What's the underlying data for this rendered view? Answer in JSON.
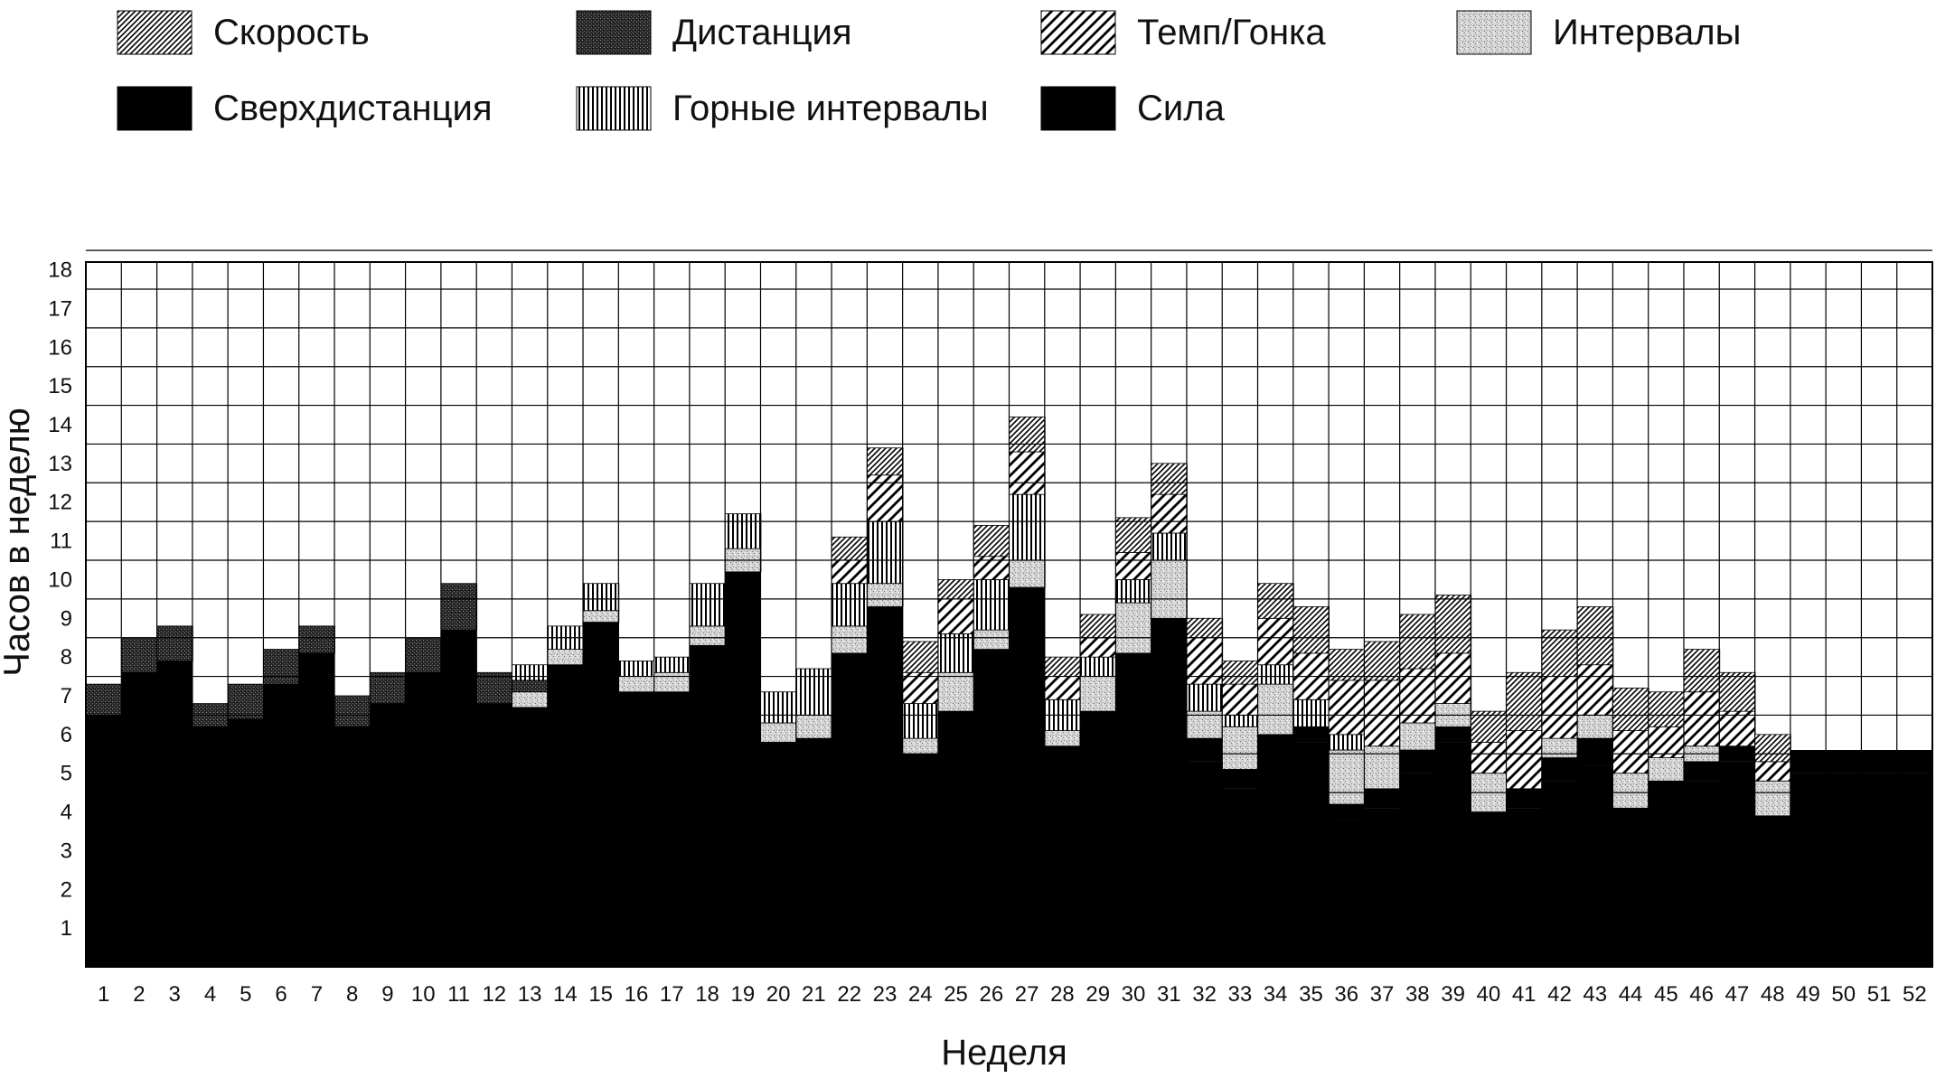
{
  "chart_data": {
    "type": "bar",
    "stacked": true,
    "title": "",
    "xlabel": "Неделя",
    "ylabel": "Часов в неделю",
    "ylim": [
      0,
      18
    ],
    "yticks": [
      1,
      2,
      3,
      4,
      5,
      6,
      7,
      8,
      9,
      10,
      11,
      12,
      13,
      14,
      15,
      16,
      17,
      18
    ],
    "grid": true,
    "legend_position": "top",
    "categories": [
      "1",
      "2",
      "3",
      "4",
      "5",
      "6",
      "7",
      "8",
      "9",
      "10",
      "11",
      "12",
      "13",
      "14",
      "15",
      "16",
      "17",
      "18",
      "19",
      "20",
      "21",
      "22",
      "23",
      "24",
      "25",
      "26",
      "27",
      "28",
      "29",
      "30",
      "31",
      "32",
      "33",
      "34",
      "35",
      "36",
      "37",
      "38",
      "39",
      "40",
      "41",
      "42",
      "43",
      "44",
      "45",
      "46",
      "47",
      "48",
      "49",
      "50",
      "51",
      "52"
    ],
    "series": [
      {
        "name": "Сила",
        "pattern": "solid-black",
        "values": [
          6.5,
          7.6,
          7.9,
          6.2,
          6.4,
          7.3,
          8.1,
          6.2,
          6.8,
          7.6,
          8.7,
          6.8,
          6.7,
          7.8,
          8.9,
          7.1,
          7.1,
          8.3,
          10.2,
          5.8,
          5.9,
          8.1,
          9.3,
          5.5,
          6.6,
          8.2,
          9.8,
          5.7,
          6.6,
          8.1,
          9.0,
          5.3,
          4.6,
          5.6,
          5.8,
          3.8,
          4.1,
          5.0,
          5.8,
          3.5,
          4.1,
          4.8,
          5.2,
          3.5,
          4.2,
          4.8,
          5.3,
          3.3,
          5.0,
          5.0,
          5.0,
          5.0
        ]
      },
      {
        "name": "Сверхдистанция",
        "pattern": "solid-black",
        "values": [
          0,
          0,
          0,
          0,
          0,
          0,
          0,
          0,
          0,
          0,
          0,
          0,
          0,
          0,
          0,
          0,
          0,
          0,
          0,
          0,
          0,
          0,
          0,
          0,
          0,
          0,
          0,
          0,
          0,
          0,
          0,
          0.6,
          0.5,
          0.4,
          0.4,
          0.4,
          0.5,
          0.6,
          0.4,
          0.5,
          0.5,
          0.6,
          0.7,
          0.6,
          0.6,
          0.5,
          0.4,
          0.6,
          0.6,
          0.6,
          0.6,
          0.6
        ]
      },
      {
        "name": "Интервалы",
        "pattern": "speckle",
        "values": [
          0,
          0,
          0,
          0,
          0,
          0,
          0,
          0,
          0,
          0,
          0,
          0,
          0.4,
          0.4,
          0.3,
          0.4,
          0.5,
          0.5,
          0.6,
          0.5,
          0.6,
          0.7,
          0.6,
          0.4,
          1.0,
          0.5,
          0.7,
          0.4,
          0.9,
          1.3,
          1.5,
          0.7,
          1.1,
          1.3,
          0,
          1.4,
          1.1,
          0.7,
          0.6,
          1.0,
          0,
          0.5,
          0.6,
          0.9,
          0.6,
          0.4,
          0,
          0.9,
          0,
          0,
          0,
          0
        ]
      },
      {
        "name": "Дистанция",
        "pattern": "dark-grey",
        "values": [
          0.8,
          0.9,
          0.9,
          0.6,
          0.9,
          0.9,
          0.7,
          0.8,
          0.8,
          0.9,
          1.2,
          0.8,
          0.3,
          0,
          0,
          0,
          0,
          0,
          0,
          0,
          0,
          0,
          0,
          0,
          0,
          0,
          0,
          0,
          0,
          0,
          0,
          0,
          0,
          0,
          0,
          0,
          0,
          0,
          0,
          0,
          0,
          0,
          0,
          0,
          0,
          0,
          0,
          0,
          0,
          0,
          0,
          0
        ]
      },
      {
        "name": "Горные интервалы",
        "pattern": "vertical-lines",
        "values": [
          0,
          0,
          0,
          0,
          0,
          0,
          0,
          0,
          0,
          0,
          0,
          0,
          0.4,
          0.6,
          0.7,
          0.4,
          0.4,
          1.1,
          0.9,
          0.8,
          1.2,
          1.1,
          1.6,
          0.9,
          1.0,
          1.3,
          1.7,
          0.8,
          0.5,
          0.6,
          0.7,
          0.7,
          0.3,
          0.5,
          0.7,
          0.4,
          0,
          0,
          0,
          0,
          0,
          0,
          0,
          0,
          0,
          0,
          0,
          0,
          0,
          0,
          0,
          0
        ]
      },
      {
        "name": "Темп/Гонка",
        "pattern": "diagonal-wide",
        "values": [
          0,
          0,
          0,
          0,
          0,
          0,
          0,
          0,
          0,
          0,
          0,
          0,
          0,
          0,
          0,
          0,
          0,
          0,
          0,
          0,
          0,
          0.6,
          1.2,
          0.8,
          0.9,
          0.6,
          1.1,
          0.6,
          0.5,
          0.7,
          1.0,
          1.2,
          0.8,
          1.2,
          1.2,
          1.4,
          1.7,
          1.4,
          1.3,
          0.8,
          1.5,
          1.6,
          1.3,
          1.1,
          0.8,
          1.4,
          0.9,
          0.5,
          0,
          0,
          0,
          0
        ]
      },
      {
        "name": "Скорость",
        "pattern": "diagonal-fine",
        "values": [
          0,
          0,
          0,
          0,
          0,
          0,
          0,
          0,
          0,
          0,
          0,
          0,
          0,
          0,
          0,
          0,
          0,
          0,
          0,
          0,
          0,
          0.6,
          0.7,
          0.8,
          0.5,
          0.8,
          0.9,
          0.5,
          0.6,
          0.9,
          0.8,
          0.5,
          0.6,
          0.9,
          1.2,
          0.8,
          1.0,
          1.4,
          1.5,
          0.8,
          1.5,
          1.2,
          1.5,
          1.1,
          0.9,
          1.1,
          1.0,
          0.7,
          0,
          0,
          0,
          0
        ]
      }
    ]
  }
}
